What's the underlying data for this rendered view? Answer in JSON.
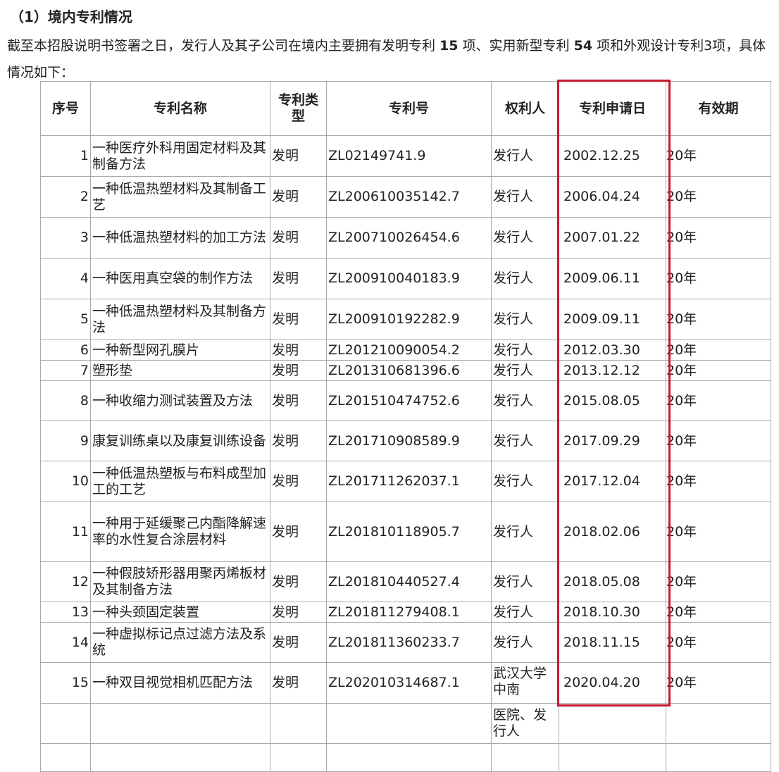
{
  "section_title": "（1）境内专利情况",
  "intro": {
    "part1": "截至本招股说明书签署之日，发行人及其子公司在境内主要拥有发明专利 ",
    "invention_count": "15",
    "part2": " 项、实用新型专利 ",
    "utility_count": "54",
    "part3": " 项和外观设计专利3项，具体情况如下："
  },
  "table": {
    "headers": [
      "序号",
      "专利名称",
      "专利类型",
      "专利号",
      "权利人",
      "专利申请日",
      "有效期"
    ],
    "rows": [
      {
        "no": "1",
        "name": "一种医疗外科用固定材料及其制备方法",
        "type": "发明",
        "patent": "ZL02149741.9",
        "owner": "发行人",
        "date": "2002.12.25",
        "term": "20年"
      },
      {
        "no": "2",
        "name": "一种低温热塑材料及其制备工艺",
        "type": "发明",
        "patent": "ZL200610035142.7",
        "owner": "发行人",
        "date": "2006.04.24",
        "term": "20年"
      },
      {
        "no": "3",
        "name": "一种低温热塑材料的加工方法",
        "type": "发明",
        "patent": "ZL200710026454.6",
        "owner": "发行人",
        "date": "2007.01.22",
        "term": "20年"
      },
      {
        "no": "4",
        "name": "一种医用真空袋的制作方法",
        "type": "发明",
        "patent": "ZL200910040183.9",
        "owner": "发行人",
        "date": "2009.06.11",
        "term": "20年"
      },
      {
        "no": "5",
        "name": "一种低温热塑材料及其制备方法",
        "type": "发明",
        "patent": "ZL200910192282.9",
        "owner": "发行人",
        "date": "2009.09.11",
        "term": "20年"
      },
      {
        "no": "6",
        "name": "一种新型网孔膜片",
        "type": "发明",
        "patent": "ZL201210090054.2",
        "owner": "发行人",
        "date": "2012.03.30",
        "term": "20年"
      },
      {
        "no": "7",
        "name": "塑形垫",
        "type": "发明",
        "patent": "ZL201310681396.6",
        "owner": "发行人",
        "date": "2013.12.12",
        "term": "20年"
      },
      {
        "no": "8",
        "name": "一种收缩力测试装置及方法",
        "type": "发明",
        "patent": "ZL201510474752.6",
        "owner": "发行人",
        "date": "2015.08.05",
        "term": "20年"
      },
      {
        "no": "9",
        "name": "康复训练桌以及康复训练设备",
        "type": "发明",
        "patent": "ZL201710908589.9",
        "owner": "发行人",
        "date": "2017.09.29",
        "term": "20年"
      },
      {
        "no": "10",
        "name": "一种低温热塑板与布料成型加工的工艺",
        "type": "发明",
        "patent": "ZL201711262037.1",
        "owner": "发行人",
        "date": "2017.12.04",
        "term": "20年"
      },
      {
        "no": "11",
        "name": "一种用于延缓聚己内酯降解速率的水性复合涂层材料",
        "type": "发明",
        "patent": "ZL201810118905.7",
        "owner": "发行人",
        "date": "2018.02.06",
        "term": "20年"
      },
      {
        "no": "12",
        "name": "一种假肢矫形器用聚丙烯板材及其制备方法",
        "type": "发明",
        "patent": "ZL201810440527.4",
        "owner": "发行人",
        "date": "2018.05.08",
        "term": "20年"
      },
      {
        "no": "13",
        "name": "一种头颈固定装置",
        "type": "发明",
        "patent": "ZL201811279408.1",
        "owner": "发行人",
        "date": "2018.10.30",
        "term": "20年"
      },
      {
        "no": "14",
        "name": "一种虚拟标记点过滤方法及系统",
        "type": "发明",
        "patent": "ZL201811360233.7",
        "owner": "发行人",
        "date": "2018.11.15",
        "term": "20年"
      },
      {
        "no": "15",
        "name": "一种双目视觉相机匹配方法",
        "type": "发明",
        "patent": "ZL202010314687.1",
        "owner": "武汉大学中南",
        "date": "2020.04.20",
        "term": "20年"
      }
    ],
    "continuation_owner": "医院、发行人"
  },
  "highlight_color": "#c8192c"
}
